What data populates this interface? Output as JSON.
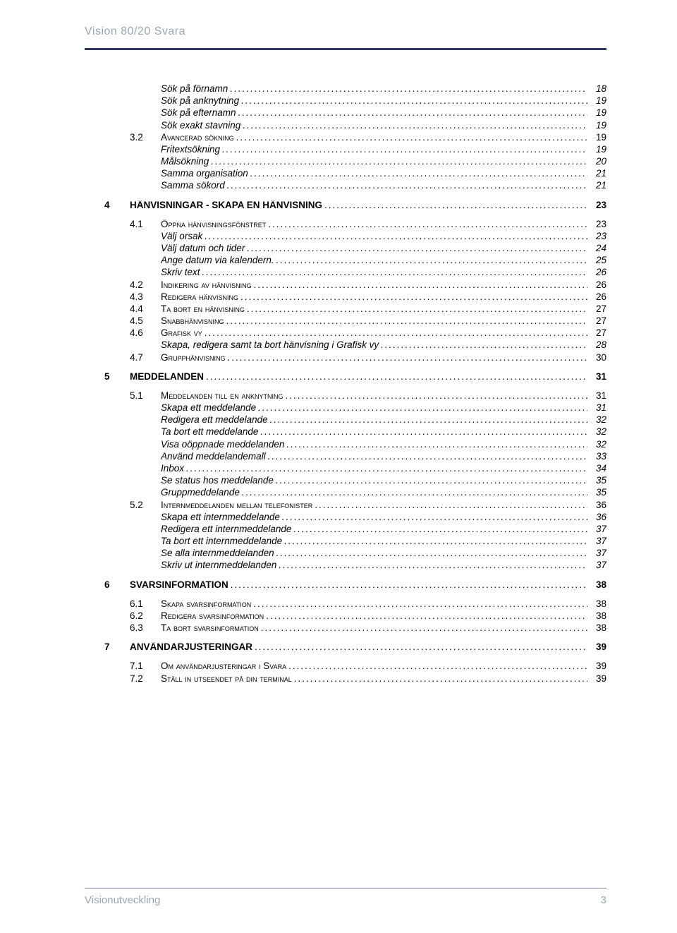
{
  "header": {
    "title": "Vision 80/20 Svara"
  },
  "footer": {
    "left": "Visionutveckling",
    "page": "3"
  },
  "toc": [
    {
      "level": 3,
      "num": "",
      "label": "Sök på förnamn",
      "page": "18"
    },
    {
      "level": 3,
      "num": "",
      "label": "Sök på anknytning",
      "page": "19"
    },
    {
      "level": 3,
      "num": "",
      "label": "Sök på efternamn",
      "page": "19"
    },
    {
      "level": 3,
      "num": "",
      "label": "Sök exakt stavning",
      "page": "19"
    },
    {
      "level": 2,
      "num": "3.2",
      "label": "Avancerad sökning",
      "page": "19"
    },
    {
      "level": 3,
      "num": "",
      "label": "Fritextsökning",
      "page": "19"
    },
    {
      "level": 3,
      "num": "",
      "label": "Målsökning",
      "page": "20"
    },
    {
      "level": 3,
      "num": "",
      "label": "Samma organisation",
      "page": "21"
    },
    {
      "level": 3,
      "num": "",
      "label": "Samma sökord",
      "page": "21"
    },
    {
      "gap": true
    },
    {
      "level": 1,
      "num": "4",
      "label": "HÄNVISNINGAR - SKAPA EN HÄNVISNING",
      "page": "23"
    },
    {
      "gap": true
    },
    {
      "level": 2,
      "num": "4.1",
      "label": "Öppna hänvisningsfönstret",
      "page": "23"
    },
    {
      "level": 3,
      "num": "",
      "label": "Välj orsak",
      "page": "23"
    },
    {
      "level": 3,
      "num": "",
      "label": "Välj datum och tider",
      "page": "24"
    },
    {
      "level": 3,
      "num": "",
      "label": "Ange datum via kalendern.",
      "page": "25"
    },
    {
      "level": 3,
      "num": "",
      "label": "Skriv text",
      "page": "26"
    },
    {
      "level": 2,
      "num": "4.2",
      "label": "Indikering av hänvisning",
      "page": "26"
    },
    {
      "level": 2,
      "num": "4.3",
      "label": "Redigera hänvisning",
      "page": "26"
    },
    {
      "level": 2,
      "num": "4.4",
      "label": "Ta bort en hänvisning",
      "page": "27"
    },
    {
      "level": 2,
      "num": "4.5",
      "label": "Snabbhänvisning",
      "page": "27"
    },
    {
      "level": 2,
      "num": "4.6",
      "label": "Grafisk vy",
      "page": "27"
    },
    {
      "level": 3,
      "num": "",
      "label": "Skapa, redigera samt ta bort hänvisning i Grafisk vy",
      "page": "28"
    },
    {
      "level": 2,
      "num": "4.7",
      "label": "Grupphänvisning",
      "page": "30"
    },
    {
      "gap": true
    },
    {
      "level": 1,
      "num": "5",
      "label": "MEDDELANDEN",
      "page": "31"
    },
    {
      "gap": true
    },
    {
      "level": 2,
      "num": "5.1",
      "label": "Meddelanden till en anknytning",
      "page": "31"
    },
    {
      "level": 3,
      "num": "",
      "label": "Skapa ett meddelande",
      "page": "31"
    },
    {
      "level": 3,
      "num": "",
      "label": "Redigera ett meddelande",
      "page": "32"
    },
    {
      "level": 3,
      "num": "",
      "label": "Ta bort ett meddelande",
      "page": "32"
    },
    {
      "level": 3,
      "num": "",
      "label": "Visa oöppnade meddelanden",
      "page": "32"
    },
    {
      "level": 3,
      "num": "",
      "label": "Använd meddelandemall",
      "page": "33"
    },
    {
      "level": 3,
      "num": "",
      "label": "Inbox",
      "page": "34"
    },
    {
      "level": 3,
      "num": "",
      "label": "Se status hos meddelande",
      "page": "35"
    },
    {
      "level": 3,
      "num": "",
      "label": "Gruppmeddelande",
      "page": "35"
    },
    {
      "level": 2,
      "num": "5.2",
      "label": "Internmeddelanden mellan telefonister",
      "page": "36"
    },
    {
      "level": 3,
      "num": "",
      "label": "Skapa ett internmeddelande",
      "page": "36"
    },
    {
      "level": 3,
      "num": "",
      "label": "Redigera ett internmeddelande",
      "page": "37"
    },
    {
      "level": 3,
      "num": "",
      "label": "Ta bort ett internmeddelande",
      "page": "37"
    },
    {
      "level": 3,
      "num": "",
      "label": "Se alla internmeddelanden",
      "page": "37"
    },
    {
      "level": 3,
      "num": "",
      "label": "Skriv ut internmeddelanden",
      "page": "37"
    },
    {
      "gap": true
    },
    {
      "level": 1,
      "num": "6",
      "label": "SVARSINFORMATION",
      "page": "38"
    },
    {
      "gap": true
    },
    {
      "level": 2,
      "num": "6.1",
      "label": "Skapa svarsinformation",
      "page": "38"
    },
    {
      "level": 2,
      "num": "6.2",
      "label": "Redigera svarsinformation",
      "page": "38"
    },
    {
      "level": 2,
      "num": "6.3",
      "label": "Ta bort svarsinformation",
      "page": "38"
    },
    {
      "gap": true
    },
    {
      "level": 1,
      "num": "7",
      "label": "ANVÄNDARJUSTERINGAR",
      "page": "39"
    },
    {
      "gap": true
    },
    {
      "level": 2,
      "num": "7.1",
      "label": "Om användarjusteringar i Svara",
      "page": "39"
    },
    {
      "level": 2,
      "num": "7.2",
      "label": "Ställ in utseendet på din terminal",
      "page": "39"
    }
  ]
}
